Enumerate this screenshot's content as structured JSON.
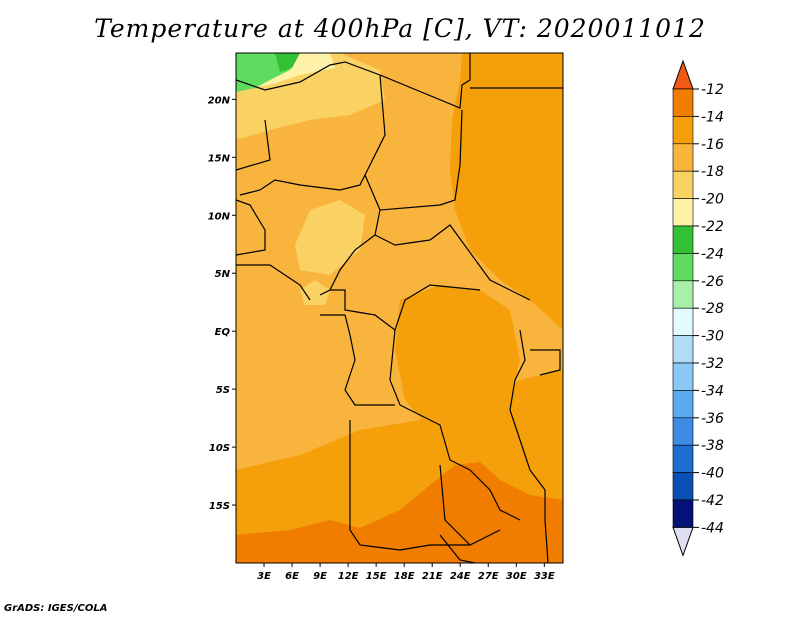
{
  "title": "Temperature at 400hPa [C], VT: 2020011012",
  "credit": "GrADS: IGES/COLA",
  "map": {
    "lon_range": [
      0,
      35
    ],
    "lat_range": [
      -20,
      24
    ],
    "lat_ticks": [
      {
        "value": 20,
        "label": "20N"
      },
      {
        "value": 15,
        "label": "15N"
      },
      {
        "value": 10,
        "label": "10N"
      },
      {
        "value": 5,
        "label": "5N"
      },
      {
        "value": 0,
        "label": "EQ"
      },
      {
        "value": -5,
        "label": "5S"
      },
      {
        "value": -10,
        "label": "10S"
      },
      {
        "value": -15,
        "label": "15S"
      }
    ],
    "lon_ticks": [
      {
        "value": 3,
        "label": "3E"
      },
      {
        "value": 6,
        "label": "6E"
      },
      {
        "value": 9,
        "label": "9E"
      },
      {
        "value": 12,
        "label": "12E"
      },
      {
        "value": 15,
        "label": "15E"
      },
      {
        "value": 18,
        "label": "18E"
      },
      {
        "value": 21,
        "label": "21E"
      },
      {
        "value": 24,
        "label": "24E"
      },
      {
        "value": 27,
        "label": "27E"
      },
      {
        "value": 30,
        "label": "30E"
      },
      {
        "value": 33,
        "label": "33E"
      }
    ]
  },
  "colorbar": {
    "labels": [
      "-12",
      "-14",
      "-16",
      "-18",
      "-20",
      "-22",
      "-24",
      "-26",
      "-28",
      "-30",
      "-32",
      "-34",
      "-36",
      "-38",
      "-40",
      "-42",
      "-44"
    ],
    "colors": [
      "#f05a14",
      "#f07c00",
      "#f5a00a",
      "#f8b43c",
      "#fad263",
      "#fdf2a8",
      "#33c033",
      "#5fdc5f",
      "#a8f0a8",
      "#e3faff",
      "#b0dcf8",
      "#8cc8f5",
      "#5aaaf0",
      "#3c8ce6",
      "#1e6ed2",
      "#0a50b4",
      "#041278",
      "#e0e0f5"
    ]
  }
}
